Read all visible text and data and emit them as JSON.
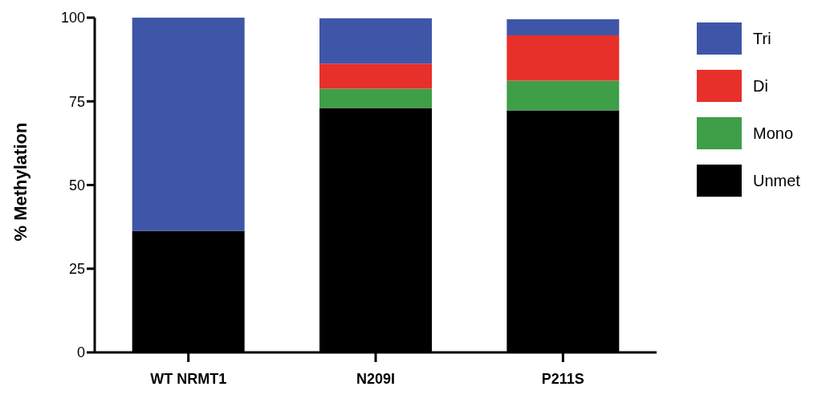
{
  "chart_data": {
    "type": "bar",
    "stacked": true,
    "ylabel": "% Methylation",
    "categories": [
      "WT NRMT1",
      "N209I",
      "P211S"
    ],
    "series": [
      {
        "name": "Unmet",
        "color": "#000000",
        "values": [
          36.3,
          73.0,
          72.3
        ]
      },
      {
        "name": "Mono",
        "color": "#3f9e48",
        "values": [
          0,
          5.8,
          8.9
        ]
      },
      {
        "name": "Di",
        "color": "#e8302a",
        "values": [
          0,
          7.5,
          13.5
        ]
      },
      {
        "name": "Tri",
        "color": "#3f56a8",
        "values": [
          63.7,
          13.5,
          4.8
        ]
      }
    ],
    "ylim": [
      0,
      100
    ],
    "yticks": [
      0,
      25,
      50,
      75,
      100
    ],
    "grid": false,
    "legend": "right"
  }
}
